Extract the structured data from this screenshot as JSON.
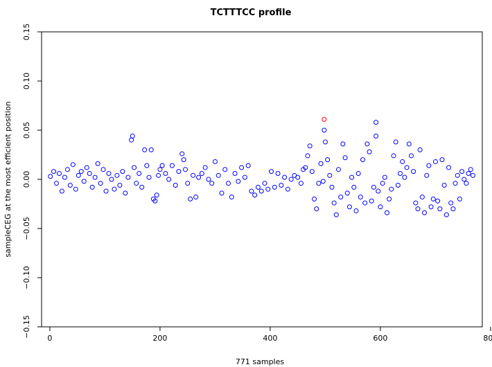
{
  "chart_data": {
    "type": "scatter",
    "title": "TCTTTCC profile",
    "xlabel": "771 samples",
    "ylabel": "sampleCEG at the most efficient position",
    "xlim": [
      -15,
      785
    ],
    "ylim": [
      -0.15,
      0.15
    ],
    "x_ticks": [
      0,
      200,
      400,
      600,
      800
    ],
    "y_ticks": [
      -0.15,
      -0.1,
      -0.05,
      0.0,
      0.05,
      0.1,
      0.15
    ],
    "x_tick_labels": [
      "0",
      "200",
      "400",
      "600",
      "800"
    ],
    "y_tick_labels": [
      "−0.15",
      "−0.10",
      "−0.05",
      "0.00",
      "0.05",
      "0.10",
      "0.15"
    ],
    "grid": false,
    "legend": "none",
    "colors": {
      "points": "#0000ff",
      "highlight": "#ff0000"
    },
    "series": [
      {
        "x": [
          1,
          7,
          12,
          17,
          22,
          27,
          32,
          37,
          42,
          47,
          52,
          57,
          62,
          67,
          72,
          77,
          82,
          87,
          92,
          97,
          102,
          107,
          112,
          117,
          122,
          127,
          132,
          137,
          142,
          148,
          150,
          153,
          157,
          162,
          167,
          172,
          176,
          180,
          184,
          188,
          191,
          194,
          197,
          200,
          204,
          210,
          216,
          222,
          228,
          234,
          240,
          243,
          246,
          250,
          255,
          260,
          265,
          270,
          276,
          282,
          288,
          294,
          300,
          306,
          312,
          318,
          324,
          330,
          336,
          342,
          348,
          354,
          360,
          366,
          372,
          378,
          384,
          390,
          396,
          402,
          408,
          414,
          420,
          426,
          432,
          438,
          444,
          450,
          456,
          460,
          464,
          468,
          472,
          476,
          480,
          484,
          488,
          492,
          496,
          500,
          504,
          508,
          512,
          516,
          520,
          524,
          528,
          532,
          536,
          540,
          544,
          548,
          552,
          556,
          560,
          564,
          568,
          572,
          576,
          580,
          584,
          588,
          592,
          596,
          600,
          604,
          608,
          612,
          616,
          620,
          624,
          628,
          632,
          636,
          640,
          644,
          648,
          652,
          656,
          660,
          664,
          668,
          672,
          676,
          680,
          684,
          688,
          692,
          696,
          700,
          704,
          708,
          712,
          716,
          720,
          724,
          728,
          732,
          736,
          740,
          744,
          748,
          752,
          756,
          760,
          764,
          768
        ],
        "y": [
          0.003,
          0.008,
          -0.004,
          0.006,
          -0.012,
          0.002,
          0.01,
          -0.006,
          0.015,
          -0.01,
          0.004,
          0.008,
          -0.002,
          0.012,
          0.006,
          -0.008,
          0.002,
          0.016,
          -0.004,
          0.01,
          -0.012,
          0.006,
          0.0,
          -0.01,
          0.004,
          -0.006,
          0.008,
          -0.014,
          0.002,
          0.04,
          0.044,
          0.012,
          -0.004,
          0.006,
          -0.008,
          0.03,
          0.014,
          0.002,
          0.03,
          -0.02,
          -0.022,
          -0.016,
          0.004,
          0.01,
          0.014,
          0.006,
          0.0,
          0.014,
          -0.006,
          0.008,
          0.026,
          0.02,
          0.01,
          -0.004,
          -0.02,
          0.004,
          -0.018,
          0.002,
          0.006,
          0.012,
          0.0,
          -0.004,
          0.018,
          0.004,
          -0.014,
          0.01,
          -0.004,
          -0.018,
          0.006,
          -0.002,
          0.012,
          0.002,
          0.014,
          -0.012,
          -0.016,
          -0.008,
          -0.012,
          -0.004,
          -0.01,
          0.008,
          -0.008,
          0.006,
          -0.006,
          0.002,
          -0.01,
          0.0,
          0.004,
          0.002,
          -0.004,
          0.01,
          0.012,
          0.024,
          0.034,
          0.008,
          -0.02,
          -0.03,
          -0.004,
          0.016,
          -0.002,
          0.038,
          0.02,
          0.004,
          -0.008,
          -0.024,
          -0.036,
          0.01,
          -0.018,
          0.036,
          0.022,
          -0.014,
          -0.028,
          0.002,
          -0.008,
          -0.032,
          0.006,
          -0.018,
          0.02,
          -0.024,
          0.036,
          0.028,
          -0.022,
          -0.008,
          0.044,
          -0.012,
          -0.028,
          -0.004,
          0.002,
          -0.034,
          -0.02,
          -0.01,
          0.024,
          0.038,
          -0.006,
          0.006,
          0.018,
          0.002,
          0.012,
          0.036,
          0.024,
          0.008,
          -0.024,
          -0.03,
          0.03,
          -0.018,
          -0.034,
          0.004,
          0.014,
          -0.028,
          -0.02,
          0.018,
          -0.022,
          -0.03,
          0.02,
          -0.006,
          -0.036,
          0.012,
          -0.024,
          -0.03,
          -0.004,
          0.004,
          -0.02,
          0.008,
          0.0,
          -0.004,
          0.006,
          0.01,
          0.004
        ],
        "highlight": [
          {
            "x": 498,
            "y": 0.061
          },
          {
            "x": 498,
            "y": 0.05
          },
          {
            "x": 592,
            "y": 0.058
          }
        ]
      }
    ]
  }
}
